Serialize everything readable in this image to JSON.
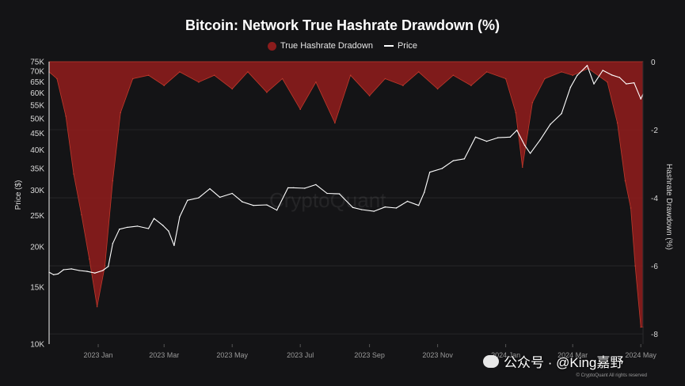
{
  "header": {
    "title": "Bitcoin: Network True Hashrate Drawdown (%)",
    "watermark": "CryptoQuant",
    "copyright": "© CryptoQuant All rights reserved",
    "social": "公众号 · @King嘉野"
  },
  "colors": {
    "background": "#141416",
    "hashrate_fill": "#8b1c1c",
    "hashrate_line": "#c0392b",
    "price_line": "#ffffff",
    "grid": "#2a2a2c"
  },
  "chart_data": {
    "type": "line",
    "title": "Bitcoin: Network True Hashrate Drawdown (%)",
    "legend": [
      "True Hashrate Dradown",
      "Price"
    ],
    "ylabel_left": "Price ($)",
    "ylabel_right": "Hashrate Drawdown (%)",
    "y_left_scale": "log",
    "y_left_range": [
      10000,
      75000
    ],
    "y_left_ticks": [
      "75K",
      "70K",
      "65K",
      "60K",
      "55K",
      "50K",
      "45K",
      "40K",
      "35K",
      "30K",
      "25K",
      "20K",
      "15K",
      "10K"
    ],
    "y_left_tick_values": [
      75000,
      70000,
      65000,
      60000,
      55000,
      50000,
      45000,
      40000,
      35000,
      30000,
      25000,
      20000,
      15000,
      10000
    ],
    "y_right_range": [
      -8.3,
      0
    ],
    "y_right_ticks": [
      "0",
      "-2",
      "-4",
      "-6",
      "-8"
    ],
    "y_right_tick_values": [
      0,
      -2,
      -4,
      -6,
      -8
    ],
    "x_range": [
      "2022-11-18",
      "2024-05-03"
    ],
    "x_ticks": [
      "2023 Jan",
      "2023 Mar",
      "2023 May",
      "2023 Jul",
      "2023 Sep",
      "2023 Nov",
      "2024 Jan",
      "2024 Mar",
      "2024 May"
    ],
    "x_tick_dates": [
      "2023-01-01",
      "2023-03-01",
      "2023-05-01",
      "2023-07-01",
      "2023-09-01",
      "2023-11-01",
      "2024-01-01",
      "2024-03-01",
      "2024-05-01"
    ],
    "series": [
      {
        "name": "Price",
        "x": [
          "2022-11-18",
          "2022-11-22",
          "2022-11-26",
          "2022-12-01",
          "2022-12-08",
          "2022-12-15",
          "2022-12-22",
          "2022-12-29",
          "2023-01-05",
          "2023-01-10",
          "2023-01-14",
          "2023-01-20",
          "2023-01-27",
          "2023-02-05",
          "2023-02-15",
          "2023-02-20",
          "2023-02-28",
          "2023-03-05",
          "2023-03-10",
          "2023-03-15",
          "2023-03-22",
          "2023-04-01",
          "2023-04-11",
          "2023-04-20",
          "2023-05-01",
          "2023-05-10",
          "2023-05-20",
          "2023-06-01",
          "2023-06-10",
          "2023-06-20",
          "2023-06-25",
          "2023-07-05",
          "2023-07-15",
          "2023-07-25",
          "2023-08-05",
          "2023-08-17",
          "2023-08-25",
          "2023-09-05",
          "2023-09-15",
          "2023-09-25",
          "2023-10-05",
          "2023-10-15",
          "2023-10-20",
          "2023-10-25",
          "2023-11-05",
          "2023-11-15",
          "2023-11-25",
          "2023-12-05",
          "2023-12-15",
          "2023-12-25",
          "2024-01-05",
          "2024-01-11",
          "2024-01-18",
          "2024-01-23",
          "2024-02-01",
          "2024-02-10",
          "2024-02-20",
          "2024-02-28",
          "2024-03-05",
          "2024-03-14",
          "2024-03-20",
          "2024-03-28",
          "2024-04-05",
          "2024-04-12",
          "2024-04-18",
          "2024-04-25",
          "2024-05-01",
          "2024-05-03"
        ],
        "values": [
          16700,
          16400,
          16500,
          17000,
          17100,
          16900,
          16800,
          16600,
          16900,
          17400,
          20500,
          22700,
          23000,
          23200,
          22800,
          24500,
          23300,
          22400,
          20200,
          24800,
          27900,
          28400,
          30300,
          28500,
          29300,
          27600,
          26900,
          27000,
          26000,
          30500,
          30500,
          30400,
          31200,
          29300,
          29200,
          26500,
          26100,
          25800,
          26600,
          26400,
          27700,
          26900,
          29500,
          34100,
          35000,
          37000,
          37500,
          43800,
          42500,
          43600,
          43800,
          46000,
          41300,
          39000,
          43000,
          48000,
          51800,
          62500,
          68000,
          73000,
          64000,
          70500,
          68200,
          67000,
          64000,
          64500,
          57500,
          59500
        ]
      },
      {
        "name": "True Hashrate Dradown",
        "x": [
          "2022-11-18",
          "2022-11-25",
          "2022-12-03",
          "2022-12-10",
          "2022-12-17",
          "2022-12-24",
          "2022-12-31",
          "2023-01-07",
          "2023-01-14",
          "2023-01-21",
          "2023-02-01",
          "2023-02-15",
          "2023-03-01",
          "2023-03-15",
          "2023-04-01",
          "2023-04-15",
          "2023-05-01",
          "2023-05-15",
          "2023-06-01",
          "2023-06-15",
          "2023-07-01",
          "2023-07-15",
          "2023-08-01",
          "2023-08-15",
          "2023-09-01",
          "2023-09-15",
          "2023-10-01",
          "2023-10-15",
          "2023-11-01",
          "2023-11-15",
          "2023-12-01",
          "2023-12-15",
          "2024-01-01",
          "2024-01-10",
          "2024-01-16",
          "2024-01-25",
          "2024-02-05",
          "2024-02-20",
          "2024-03-01",
          "2024-03-15",
          "2024-04-01",
          "2024-04-10",
          "2024-04-17",
          "2024-04-22",
          "2024-04-26",
          "2024-05-01",
          "2024-05-03"
        ],
        "values": [
          -0.3,
          -0.5,
          -1.6,
          -3.3,
          -4.5,
          -5.8,
          -7.2,
          -6.0,
          -3.5,
          -1.5,
          -0.5,
          -0.4,
          -0.7,
          -0.3,
          -0.6,
          -0.4,
          -0.8,
          -0.3,
          -0.9,
          -0.5,
          -1.4,
          -0.6,
          -1.8,
          -0.4,
          -1.0,
          -0.5,
          -0.7,
          -0.3,
          -0.8,
          -0.4,
          -0.7,
          -0.3,
          -0.5,
          -1.5,
          -3.1,
          -1.2,
          -0.5,
          -0.3,
          -0.4,
          -0.2,
          -0.6,
          -1.8,
          -3.5,
          -4.3,
          -6.0,
          -7.8,
          -7.8
        ]
      }
    ],
    "grid": true,
    "legend_position": "top-center"
  }
}
